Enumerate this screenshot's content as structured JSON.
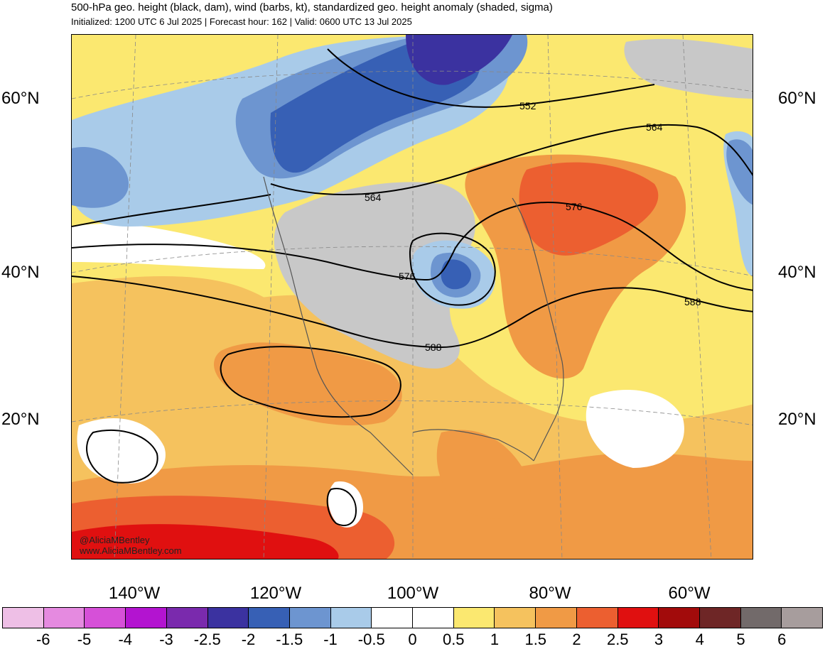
{
  "header": {
    "title": "500-hPa geo. height (black, dam), wind (barbs, kt), standardized geo. height anomaly (shaded, sigma)",
    "subtitle": "Initialized: 1200 UTC 6 Jul 2025 | Forecast hour: 162 | Valid: 0600 UTC 13 Jul 2025"
  },
  "map": {
    "lat_labels": [
      "60°N",
      "40°N",
      "20°N"
    ],
    "lon_labels": [
      "140°W",
      "120°W",
      "100°W",
      "80°W",
      "60°W"
    ],
    "contour_labels": [
      "552",
      "564",
      "564",
      "576",
      "576",
      "588",
      "588"
    ],
    "watermark": [
      "@AliciaMBentley",
      "www.AliciaMBentley.com"
    ]
  },
  "colorbar": {
    "labels": [
      "-6",
      "-5",
      "-4",
      "-3",
      "-2.5",
      "-2",
      "-1.5",
      "-1",
      "-0.5",
      "0",
      "0.5",
      "1",
      "1.5",
      "2",
      "2.5",
      "3",
      "4",
      "5",
      "6"
    ],
    "colors": [
      "#eebfe6",
      "#e58ae0",
      "#d650d8",
      "#b314d0",
      "#7a2aad",
      "#3b32a0",
      "#3760b5",
      "#6d95d0",
      "#a9cbe9",
      "#ffffff",
      "#ffffff",
      "#fbe870",
      "#f5c25e",
      "#f09a45",
      "#ec5f30",
      "#e01010",
      "#a20b0b",
      "#6e2626",
      "#726a6a",
      "#a79d9d"
    ]
  }
}
